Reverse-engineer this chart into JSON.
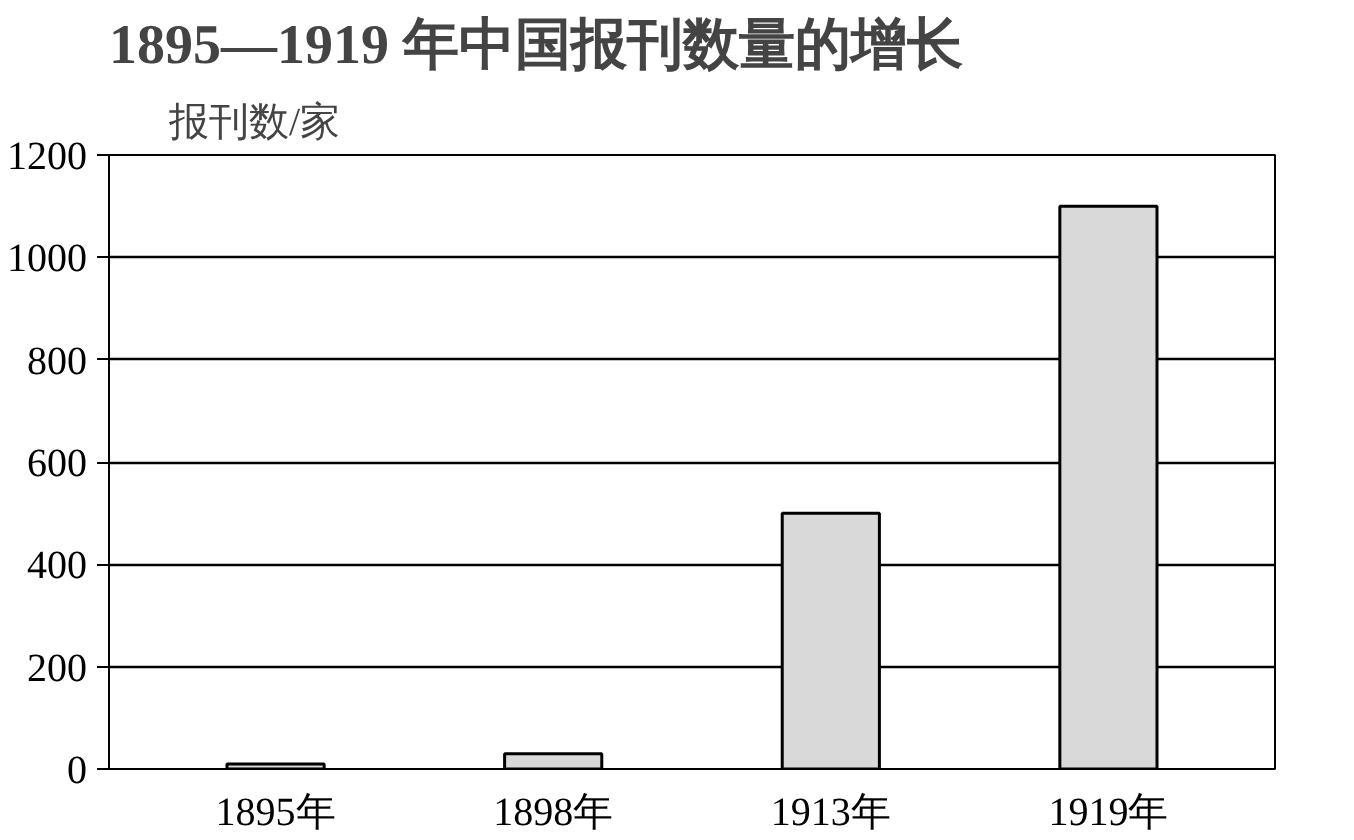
{
  "chart_data": {
    "type": "bar",
    "title": "1895—1919 年中国报刊数量的增长",
    "ylabel": "报刊数/家",
    "categories": [
      "1895年",
      "1898年",
      "1913年",
      "1919年"
    ],
    "values": [
      10,
      30,
      500,
      1100
    ],
    "color": "#d9d9d9",
    "ylim": [
      0,
      1200
    ],
    "yticks": [
      0,
      200,
      400,
      600,
      800,
      1000,
      1200
    ],
    "grid": "y"
  }
}
